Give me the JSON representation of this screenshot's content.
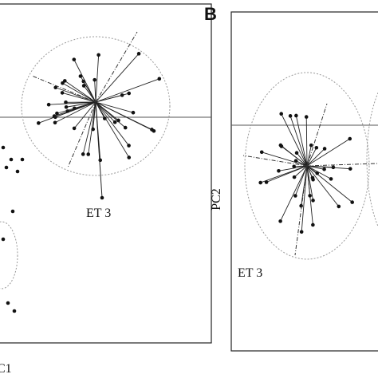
{
  "panel_b": {
    "letter": "B",
    "y_axis_label": "PC2",
    "group_label": "ET 3"
  },
  "panel_a": {
    "group_label": "ET 3",
    "x_axis_label": "C1"
  }
}
